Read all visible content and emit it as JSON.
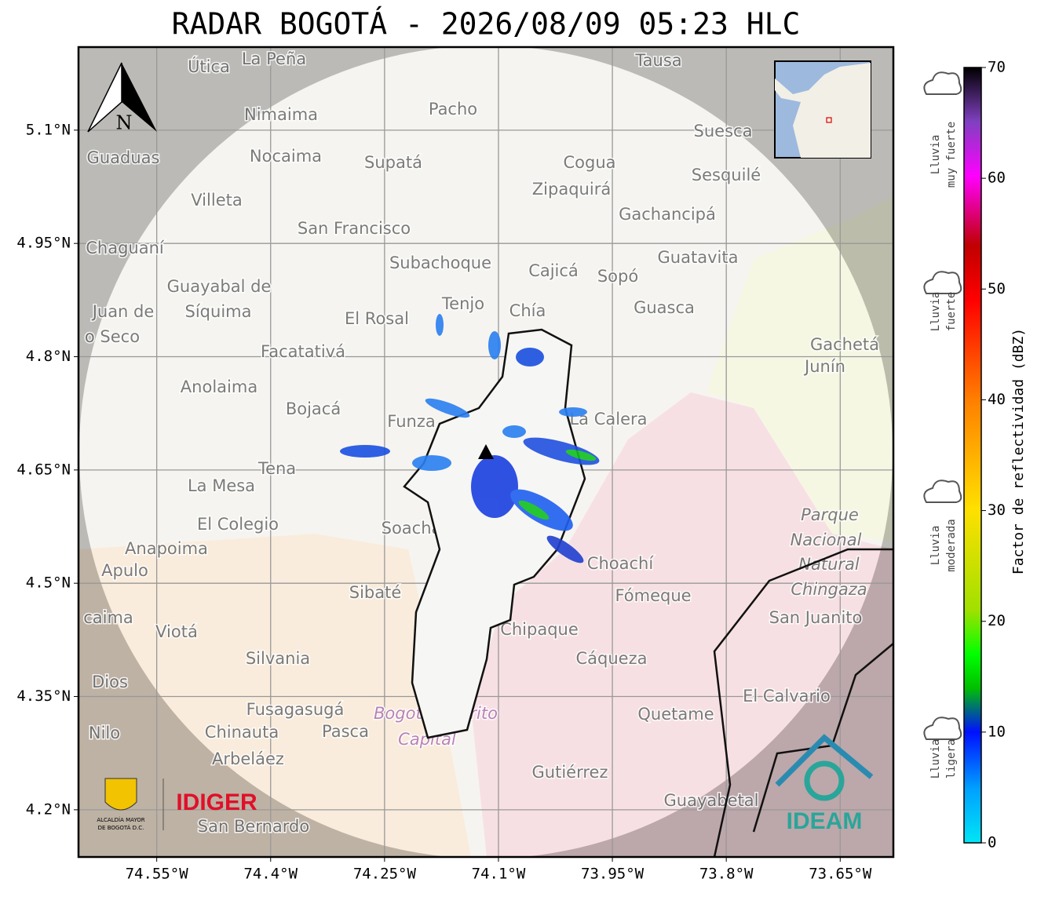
{
  "map": {
    "title": "RADAR BOGOTÁ - 2026/08/09 05:23 HLC",
    "lon_range": [
      -74.653,
      -73.58
    ],
    "lat_range": [
      4.1375,
      5.21
    ],
    "lon_ticks": [
      {
        "value": -74.55,
        "label": "74.55°W"
      },
      {
        "value": -74.4,
        "label": "74.4°W"
      },
      {
        "value": -74.25,
        "label": "74.25°W"
      },
      {
        "value": -74.1,
        "label": "74.1°W"
      },
      {
        "value": -73.95,
        "label": "73.95°W"
      },
      {
        "value": -73.8,
        "label": "73.8°W"
      },
      {
        "value": -73.65,
        "label": "73.65°W"
      }
    ],
    "lat_ticks": [
      {
        "value": 5.1,
        "label": "5.1°N"
      },
      {
        "value": 4.95,
        "label": "4.95°N"
      },
      {
        "value": 4.8,
        "label": "4.8°N"
      },
      {
        "value": 4.65,
        "label": "4.65°N"
      },
      {
        "value": 4.5,
        "label": "4.5°N"
      },
      {
        "value": 4.35,
        "label": "4.35°N"
      },
      {
        "value": 4.2,
        "label": "4.2°N"
      }
    ],
    "grid": true,
    "places": [
      "Útica",
      "La Peña",
      "Tausa",
      "Pacho",
      "Nimaima",
      "Guaduas",
      "Nocaima",
      "Supatá",
      "Cogua",
      "Suesca",
      "Sesquilé",
      "Zipaquirá",
      "Villeta",
      "Gachancipá",
      "San Francisco",
      "Chaguaní",
      "Subachoque",
      "Guatavita",
      "Cajicá",
      "Sopó",
      "Guayabal de",
      "Síquima",
      "Tenjo",
      "Chía",
      "Guasca",
      "Juan de",
      "o Seco",
      "El Rosal",
      "Facatativá",
      "Gachetá",
      "Junín",
      "Anolaima",
      "Bojacá",
      "Funza",
      "La Calera",
      "Tena",
      "La Mesa",
      "El Colegio",
      "Soacha",
      "Parque",
      "Nacional",
      "Natural",
      "Chingaza",
      "Anapoima",
      "Apulo",
      "Choachí",
      "Sibaté",
      "Fómeque",
      "San Juanito",
      "caima",
      "Viotá",
      "Chipaque",
      "Silvania",
      "Cáqueza",
      "Dios",
      "El Calvario",
      "Fusagasugá",
      "Bogotá Distrito",
      "Capital",
      "Quetame",
      "Nilo",
      "Chinauta",
      "Pasca",
      "Arbeláez",
      "Gutiérrez",
      "Guayabetal",
      "San Bernardo"
    ],
    "north": "N"
  },
  "colorbar": {
    "label": "Factor de reflectividad (dBZ)",
    "range": [
      0,
      70
    ],
    "ticks": [
      0,
      10,
      20,
      30,
      40,
      50,
      60,
      70
    ]
  },
  "rain_levels": [
    [
      "Lluvia",
      "muy fuerte"
    ],
    [
      "Lluvia",
      "fuerte"
    ],
    [
      "Lluvia",
      "moderada"
    ],
    [
      "Lluvia",
      "ligera"
    ]
  ],
  "logos": {
    "bogota": "ALCALDÍA MAYOR",
    "bogota2": "DE BOGOTÁ D.C.",
    "idiger": "IDIGER",
    "ideam": "IDEAM"
  }
}
